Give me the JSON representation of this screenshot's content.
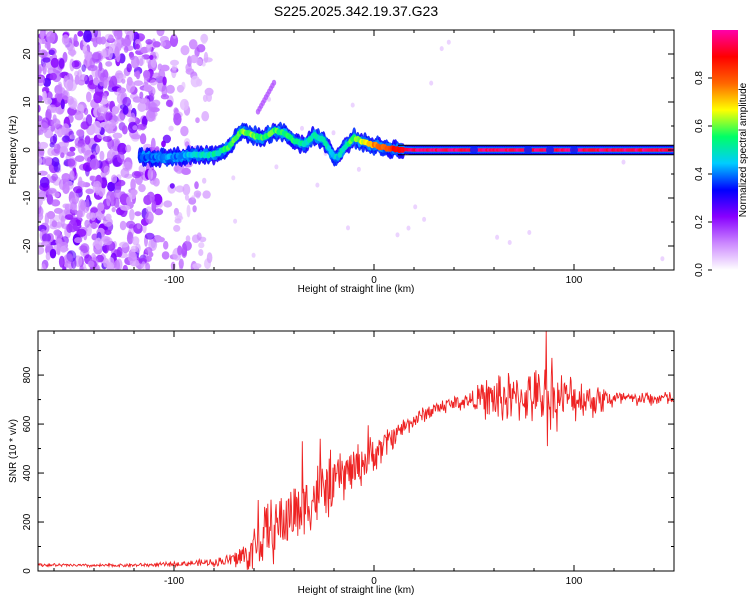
{
  "title": "S225.2025.342.19.37.G23",
  "chart_data": [
    {
      "type": "heatmap",
      "name": "spectrogram",
      "xlabel": "Height of straight line (km)",
      "ylabel": "Frequency (Hz)",
      "xlim": [
        -168,
        150
      ],
      "ylim": [
        -25,
        25
      ],
      "xticks": [
        -100,
        0,
        100
      ],
      "yticks": [
        -20,
        -10,
        0,
        10,
        20
      ],
      "xtick_labels": [
        "-100",
        "0",
        "100"
      ],
      "ytick_labels": [
        "-20",
        "-10",
        "0",
        "10",
        "20"
      ],
      "colorbar": {
        "label": "Normalized spectral amplitude",
        "range": [
          0.0,
          1.0
        ],
        "ticks": [
          0.0,
          0.2,
          0.4,
          0.6,
          0.8
        ],
        "tick_labels": [
          "0.0",
          "0.2",
          "0.4",
          "0.6",
          "0.8"
        ],
        "colors": [
          "#ffffff",
          "#cc88ff",
          "#8800ff",
          "#0000ff",
          "#00ccff",
          "#00ff66",
          "#ffff00",
          "#ff6600",
          "#ff0000",
          "#ff00aa"
        ]
      },
      "noise_region_km": [
        -168,
        -82
      ],
      "tone_start_km": -117,
      "ridge_x": [
        -117,
        -110,
        -100,
        -90,
        -80,
        -73,
        -66,
        -60,
        -55,
        -50,
        -45,
        -40,
        -35,
        -30,
        -25,
        -20,
        -18,
        -15,
        -10,
        -5,
        0,
        5,
        10,
        20,
        40,
        60,
        80,
        100,
        120,
        150
      ],
      "ridge_y": [
        -1.5,
        -1.5,
        -1.5,
        -1.0,
        -1.0,
        0.5,
        4.0,
        3.0,
        2.5,
        4.0,
        3.5,
        2.0,
        1.0,
        3.0,
        2.0,
        -1.5,
        -1.5,
        0.5,
        2.5,
        1.5,
        1.0,
        0.5,
        0.2,
        0.0,
        0.0,
        0.0,
        0.0,
        0.0,
        0.0,
        0.0
      ],
      "ridge_amplitude": [
        0.35,
        0.4,
        0.4,
        0.45,
        0.5,
        0.55,
        0.6,
        0.6,
        0.55,
        0.6,
        0.55,
        0.55,
        0.5,
        0.5,
        0.5,
        0.45,
        0.45,
        0.5,
        0.6,
        0.65,
        0.75,
        0.8,
        0.85,
        0.95,
        0.95,
        0.95,
        0.95,
        0.95,
        0.95,
        0.95
      ],
      "side_branch_x": [
        -58,
        -50
      ],
      "side_branch_y": [
        8,
        14
      ]
    },
    {
      "type": "line",
      "name": "snr",
      "xlabel": "Height of straight line (km)",
      "ylabel": "SNR (10 * v/v)",
      "xlim": [
        -168,
        150
      ],
      "ylim": [
        0,
        980
      ],
      "xticks": [
        -100,
        0,
        100
      ],
      "yticks": [
        0,
        200,
        400,
        600,
        800
      ],
      "xtick_labels": [
        "-100",
        "0",
        "100"
      ],
      "ytick_labels": [
        "0",
        "200",
        "400",
        "600",
        "800"
      ],
      "color": "#ee2222",
      "x": [
        -168,
        -140,
        -110,
        -100,
        -90,
        -80,
        -72,
        -65,
        -60,
        -55,
        -50,
        -45,
        -40,
        -35,
        -30,
        -25,
        -20,
        -15,
        -10,
        -5,
        0,
        5,
        10,
        15,
        20,
        25,
        30,
        35,
        40,
        45,
        50,
        55,
        60,
        65,
        70,
        75,
        80,
        85,
        90,
        95,
        100,
        105,
        110,
        115,
        120,
        125,
        130,
        135,
        140,
        145,
        150
      ],
      "y": [
        25,
        22,
        25,
        28,
        32,
        35,
        45,
        60,
        95,
        140,
        175,
        205,
        240,
        270,
        300,
        330,
        365,
        395,
        420,
        445,
        475,
        515,
        555,
        590,
        615,
        640,
        660,
        675,
        685,
        692,
        700,
        705,
        700,
        710,
        700,
        715,
        705,
        715,
        700,
        710,
        705,
        705,
        700,
        705,
        700,
        705,
        700,
        705,
        700,
        710,
        700
      ],
      "spread": [
        8,
        8,
        10,
        12,
        15,
        20,
        35,
        80,
        120,
        150,
        160,
        160,
        170,
        170,
        160,
        160,
        150,
        130,
        120,
        100,
        90,
        80,
        60,
        50,
        40,
        40,
        40,
        40,
        40,
        45,
        50,
        90,
        130,
        150,
        110,
        120,
        130,
        170,
        150,
        110,
        110,
        90,
        90,
        70,
        50,
        40,
        35,
        35,
        35,
        35,
        35
      ],
      "spikes": [
        {
          "x": 86,
          "y": 980
        },
        {
          "x": 86.6,
          "y": 510
        },
        {
          "x": 89,
          "y": 870
        },
        {
          "x": -3,
          "y": 595
        },
        {
          "x": -27,
          "y": 540
        },
        {
          "x": -58,
          "y": 290
        },
        {
          "x": -36,
          "y": 530
        }
      ]
    }
  ]
}
